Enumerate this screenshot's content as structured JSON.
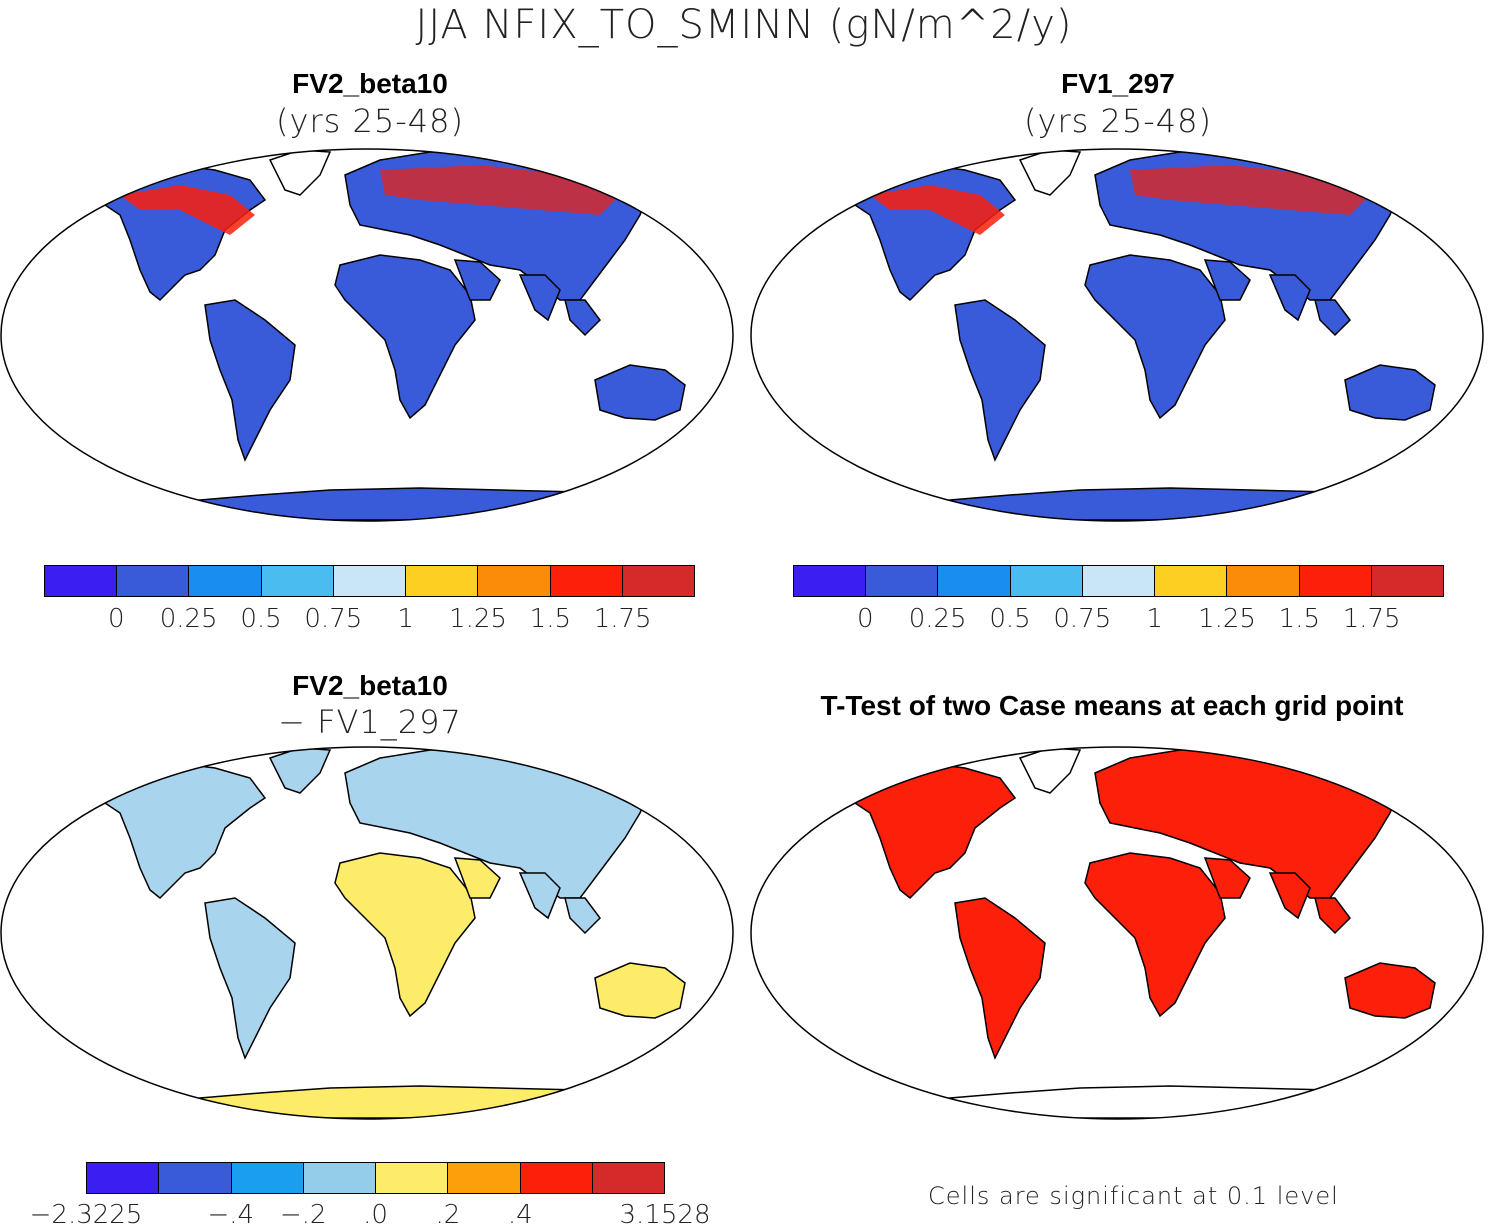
{
  "figure_title": "JJA NFIX_TO_SMINN (gN/m^2/y)",
  "panels": [
    {
      "title": "FV2_beta10",
      "subtitle": "(yrs 25-48)"
    },
    {
      "title": "FV1_297",
      "subtitle": "(yrs 25-48)"
    },
    {
      "title": "FV2_beta10",
      "subtitle": "− FV1_297"
    },
    {
      "title": "T-Test of two Case means at each grid point",
      "subtitle": ""
    }
  ],
  "colorbars": {
    "absolute": {
      "colors": [
        "#3b1ef2",
        "#3a5bd9",
        "#1a8ef0",
        "#4bbcef",
        "#c8e6f7",
        "#fdcf22",
        "#fb8c0a",
        "#fc1f0a",
        "#d42a2a"
      ],
      "ticks": [
        "0",
        "0.25",
        "0.5",
        "0.75",
        "1",
        "1.25",
        "1.5",
        "1.75"
      ]
    },
    "difference": {
      "colors": [
        "#3b1ef2",
        "#3a5bd9",
        "#1a9ff0",
        "#94cdea",
        "#fdec6a",
        "#fba00a",
        "#fc1f0a",
        "#d42a2a"
      ],
      "ticks": [
        "−2.3225",
        "−.4",
        "−.2",
        ".0",
        ".2",
        ".4",
        "3.1528"
      ]
    }
  },
  "map_fills": {
    "panel1": "#3a5bd9",
    "panel2": "#3a5bd9",
    "panel3": "#a9d4ee",
    "panel4": "#fc1f0a"
  },
  "ttest_note": "Cells are significant at 0.1 level"
}
